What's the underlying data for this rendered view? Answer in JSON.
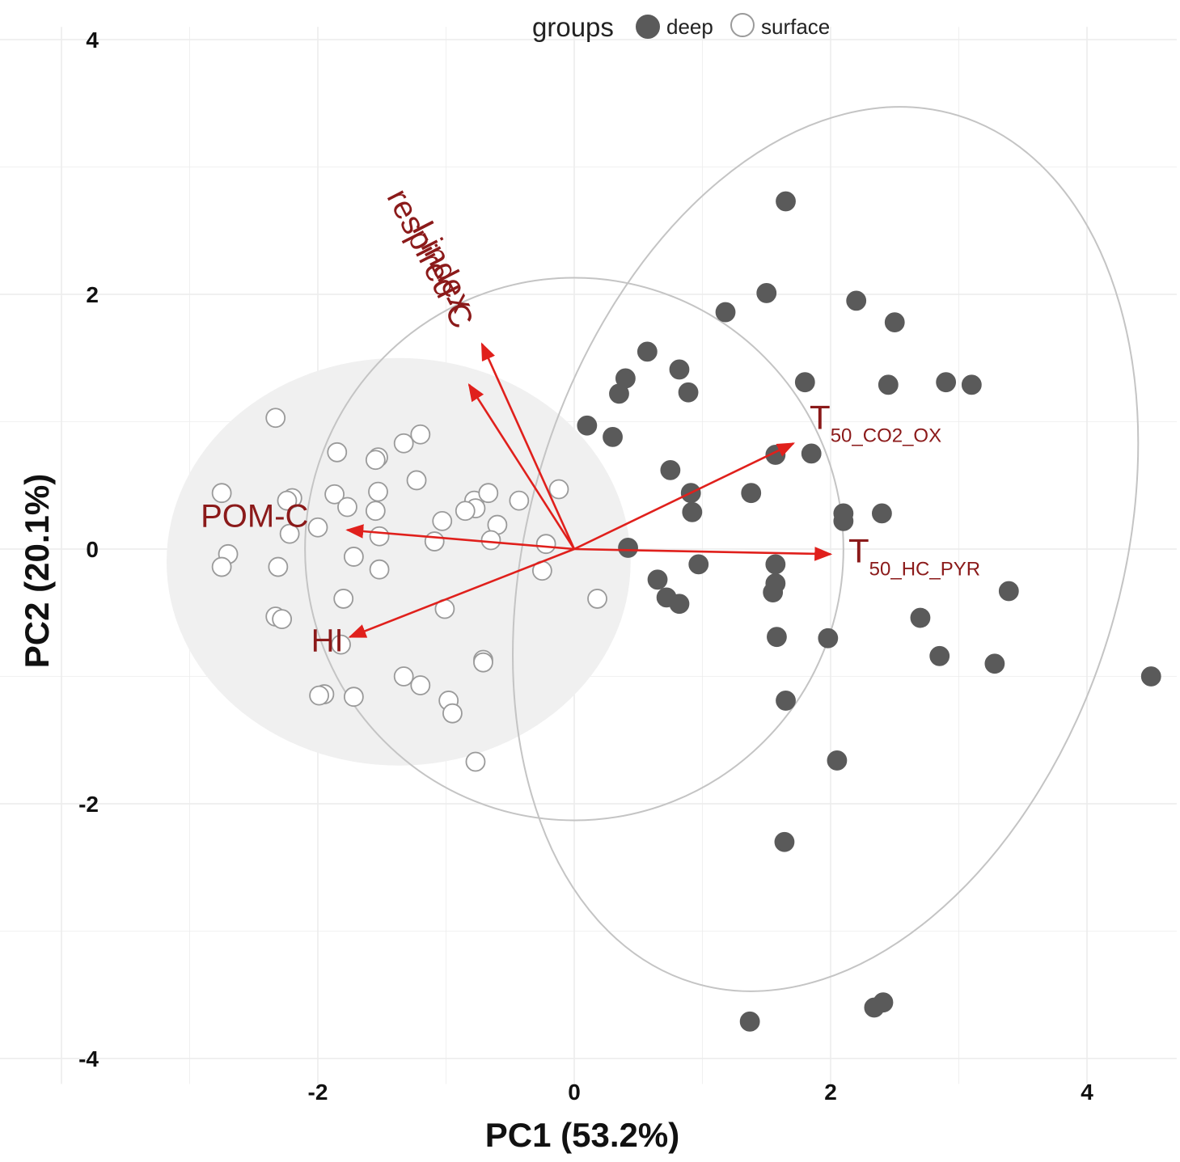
{
  "chart_data": {
    "type": "scatter",
    "xlabel": "PC1 (53.2%)",
    "ylabel": "PC2 (20.1%)",
    "xlim": [
      -4.5,
      4.7
    ],
    "ylim": [
      -4.2,
      4.1
    ],
    "x_ticks": [
      -2,
      0,
      2,
      4
    ],
    "y_ticks": [
      -4,
      -2,
      0,
      2,
      4
    ],
    "x_tick_labels": [
      "-2",
      "0",
      "2",
      "4"
    ],
    "y_tick_labels": [
      "-4",
      "-2",
      "0",
      "2",
      "4"
    ],
    "grid": true,
    "legend": {
      "title": "groups",
      "placement": "top",
      "entries": [
        {
          "label": "deep",
          "fill": "#5a5a5a",
          "stroke": "#5a5a5a"
        },
        {
          "label": "surface",
          "fill": "#ffffff",
          "stroke": "#9a9a9a"
        }
      ]
    },
    "colors": {
      "arrow": "#e0201c",
      "var_label": "#8b1a1a",
      "grid": "#ececec",
      "ellipse": "#c4c4c4",
      "surface_fill": "#f0f0f0"
    },
    "series": [
      {
        "name": "deep",
        "points": [
          [
            1.65,
            2.73
          ],
          [
            1.5,
            2.01
          ],
          [
            1.18,
            1.86
          ],
          [
            2.2,
            1.95
          ],
          [
            2.5,
            1.78
          ],
          [
            0.57,
            1.55
          ],
          [
            0.82,
            1.41
          ],
          [
            0.4,
            1.34
          ],
          [
            0.89,
            1.23
          ],
          [
            0.35,
            1.22
          ],
          [
            1.8,
            1.31
          ],
          [
            2.45,
            1.29
          ],
          [
            2.9,
            1.31
          ],
          [
            3.1,
            1.29
          ],
          [
            0.1,
            0.97
          ],
          [
            0.3,
            0.88
          ],
          [
            1.57,
            0.74
          ],
          [
            1.85,
            0.75
          ],
          [
            0.75,
            0.62
          ],
          [
            0.91,
            0.44
          ],
          [
            1.38,
            0.44
          ],
          [
            0.92,
            0.29
          ],
          [
            2.1,
            0.28
          ],
          [
            2.1,
            0.22
          ],
          [
            2.4,
            0.28
          ],
          [
            0.42,
            0.01
          ],
          [
            0.97,
            -0.12
          ],
          [
            1.57,
            -0.12
          ],
          [
            0.65,
            -0.24
          ],
          [
            1.57,
            -0.27
          ],
          [
            1.55,
            -0.34
          ],
          [
            0.72,
            -0.38
          ],
          [
            0.82,
            -0.43
          ],
          [
            3.39,
            -0.33
          ],
          [
            2.7,
            -0.54
          ],
          [
            1.58,
            -0.69
          ],
          [
            1.98,
            -0.7
          ],
          [
            2.85,
            -0.84
          ],
          [
            3.28,
            -0.9
          ],
          [
            4.5,
            -1.0
          ],
          [
            1.65,
            -1.19
          ],
          [
            2.05,
            -1.66
          ],
          [
            1.64,
            -2.3
          ],
          [
            2.41,
            -3.56
          ],
          [
            2.34,
            -3.6
          ],
          [
            1.37,
            -3.71
          ]
        ]
      },
      {
        "name": "surface",
        "points": [
          [
            -2.33,
            1.03
          ],
          [
            -1.2,
            0.9
          ],
          [
            -1.33,
            0.83
          ],
          [
            -1.85,
            0.76
          ],
          [
            -1.53,
            0.72
          ],
          [
            -1.55,
            0.7
          ],
          [
            -1.23,
            0.54
          ],
          [
            -2.75,
            0.44
          ],
          [
            -2.2,
            0.4
          ],
          [
            -2.24,
            0.38
          ],
          [
            -1.87,
            0.43
          ],
          [
            -1.53,
            0.45
          ],
          [
            -1.77,
            0.33
          ],
          [
            -1.55,
            0.3
          ],
          [
            -0.78,
            0.38
          ],
          [
            -0.67,
            0.44
          ],
          [
            -0.43,
            0.38
          ],
          [
            -0.77,
            0.32
          ],
          [
            -0.85,
            0.3
          ],
          [
            -1.03,
            0.22
          ],
          [
            -0.6,
            0.19
          ],
          [
            -2.0,
            0.17
          ],
          [
            -0.12,
            0.47
          ],
          [
            -2.22,
            0.12
          ],
          [
            -1.52,
            0.1
          ],
          [
            -1.09,
            0.06
          ],
          [
            -0.65,
            0.07
          ],
          [
            -0.22,
            0.04
          ],
          [
            -2.7,
            -0.04
          ],
          [
            -1.72,
            -0.06
          ],
          [
            -2.75,
            -0.14
          ],
          [
            -2.31,
            -0.14
          ],
          [
            -1.52,
            -0.16
          ],
          [
            -0.25,
            -0.17
          ],
          [
            -1.8,
            -0.39
          ],
          [
            0.18,
            -0.39
          ],
          [
            -1.01,
            -0.47
          ],
          [
            -2.33,
            -0.53
          ],
          [
            -2.28,
            -0.55
          ],
          [
            -1.82,
            -0.75
          ],
          [
            -0.71,
            -0.87
          ],
          [
            -0.71,
            -0.89
          ],
          [
            -1.33,
            -1.0
          ],
          [
            -1.2,
            -1.07
          ],
          [
            -1.95,
            -1.14
          ],
          [
            -1.99,
            -1.15
          ],
          [
            -1.72,
            -1.16
          ],
          [
            -0.98,
            -1.19
          ],
          [
            -0.95,
            -1.29
          ],
          [
            -0.77,
            -1.67
          ]
        ]
      }
    ],
    "ellipses": [
      {
        "group": "surface",
        "filled": true,
        "center": [
          -1.37,
          -0.1
        ],
        "rx": 1.81,
        "ry": 1.6
      },
      {
        "group": "surface",
        "filled": false,
        "center": [
          0.0,
          0.0
        ],
        "rx": 2.1,
        "ry": 2.13
      },
      {
        "group": "deep",
        "filled": false,
        "center": [
          1.96,
          0.0
        ],
        "rx": 2.31,
        "ry": 3.56,
        "angle": 17
      }
    ],
    "loadings": [
      {
        "label": "I-index",
        "x": -0.72,
        "y": 1.61
      },
      {
        "label": "respired-C",
        "x": -0.82,
        "y": 1.29
      },
      {
        "label": "POM-C",
        "x": -1.77,
        "y": 0.15
      },
      {
        "label": "HI",
        "x": -1.75,
        "y": -0.69
      },
      {
        "label": "T",
        "sub": "50_CO2_OX",
        "x": 1.71,
        "y": 0.83
      },
      {
        "label": "T",
        "sub": "50_HC_PYR",
        "x": 2.0,
        "y": -0.04
      }
    ]
  }
}
